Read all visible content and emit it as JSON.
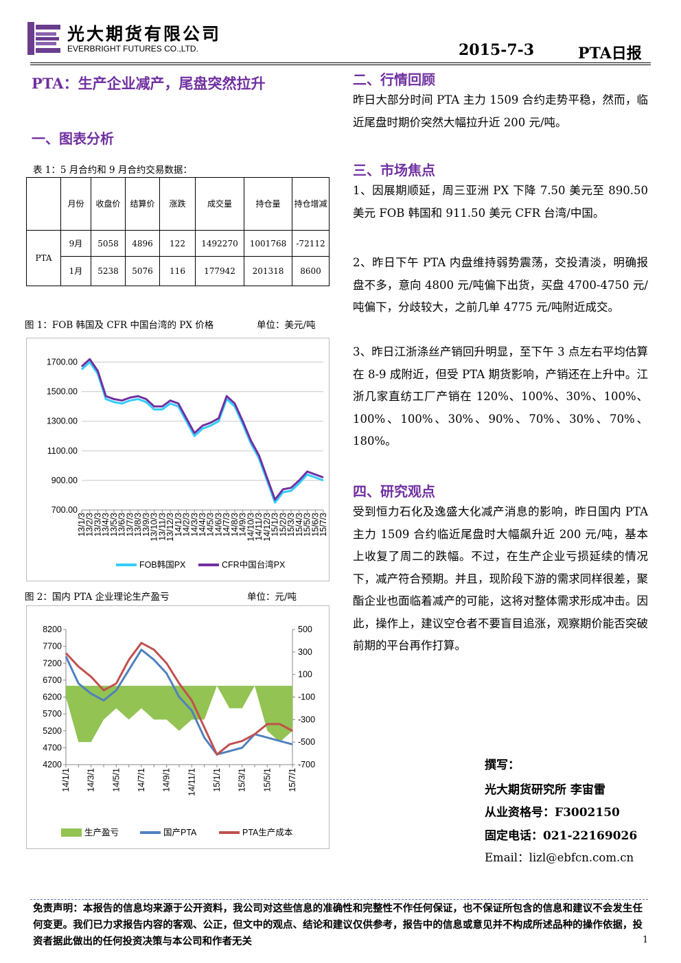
{
  "header": {
    "company": "光大期货有限公司",
    "company_en": "EVERBRIGHT FUTURES CO.,LTD.",
    "date": "2015-7-3",
    "report": "PTA日报"
  },
  "title": "PTA：生产企业减产，尾盘突然拉升",
  "section1": {
    "heading": "一、图表分析"
  },
  "table": {
    "caption": "表 1：5 月合约和 9 月合约交易数据：",
    "header": [
      "月份",
      "收盘价",
      "结算价",
      "涨跌",
      "成交量",
      "持仓量",
      "持仓增减"
    ],
    "group": "PTA",
    "rows": [
      [
        "9月",
        5058,
        4896,
        122,
        1492270,
        1001768,
        -72112
      ],
      [
        "1月",
        5238,
        5076,
        116,
        177942,
        201318,
        8600
      ]
    ]
  },
  "chart_data": [
    {
      "type": "line",
      "title": "图 1：FOB 韩国及 CFR 中国台湾的 PX 价格",
      "unit": "单位：美元/吨",
      "categories": [
        "13/1/3",
        "13/2/3",
        "13/3/3",
        "13/4/3",
        "13/5/3",
        "13/6/3",
        "13/7/3",
        "13/8/3",
        "13/9/3",
        "13/10/3",
        "13/11/3",
        "13/12/3",
        "14/1/3",
        "14/2/3",
        "14/3/3",
        "14/4/3",
        "14/5/3",
        "14/6/3",
        "14/7/3",
        "14/8/3",
        "14/9/3",
        "14/10/3",
        "14/11/3",
        "14/12/3",
        "15/1/3",
        "15/2/3",
        "15/3/3",
        "15/4/3",
        "15/5/3",
        "15/6/3",
        "15/7/3"
      ],
      "series": [
        {
          "name": "FOB韩国PX",
          "color": "#33ccff",
          "values": [
            1650,
            1700,
            1620,
            1450,
            1430,
            1420,
            1440,
            1450,
            1430,
            1380,
            1380,
            1420,
            1400,
            1300,
            1200,
            1250,
            1270,
            1300,
            1450,
            1400,
            1280,
            1150,
            1050,
            900,
            750,
            820,
            830,
            880,
            940,
            920,
            900
          ]
        },
        {
          "name": "CFR中国台湾PX",
          "color": "#7030a0",
          "values": [
            1670,
            1720,
            1640,
            1470,
            1450,
            1440,
            1460,
            1470,
            1450,
            1400,
            1400,
            1440,
            1420,
            1320,
            1220,
            1270,
            1290,
            1320,
            1470,
            1420,
            1300,
            1170,
            1070,
            920,
            770,
            840,
            850,
            900,
            960,
            940,
            920
          ]
        }
      ],
      "ylim": [
        700,
        1800
      ],
      "yticks": [
        {
          "value": 700,
          "label": "700.00"
        },
        {
          "value": 900,
          "label": "900.00"
        },
        {
          "value": 1100,
          "label": "1100.00"
        },
        {
          "value": 1300,
          "label": "1300.00"
        },
        {
          "value": 1500,
          "label": "1500.00"
        },
        {
          "value": 1700,
          "label": "1700.00"
        }
      ],
      "grid": true
    },
    {
      "type": "line",
      "title": "图 2：国内 PTA 企业理论生产盈亏",
      "unit": "单位：元/吨",
      "categories": [
        "14/1/1",
        null,
        "14/3/1",
        null,
        "14/5/1",
        null,
        "14/7/1",
        null,
        "14/9/1",
        null,
        "14/11/1",
        null,
        "15/1/1",
        null,
        "15/3/1",
        null,
        "15/5/1",
        null,
        "15/7/1"
      ],
      "series": [
        {
          "name": "生产盈亏",
          "type": "area",
          "axis": "y2",
          "color": "#92c353",
          "values": [
            -100,
            -500,
            -500,
            -300,
            -200,
            -300,
            -200,
            -300,
            -300,
            -400,
            -300,
            -300,
            0,
            -200,
            -200,
            0,
            -400,
            -500,
            -400
          ]
        },
        {
          "name": "国产PTA",
          "color": "#4f81bd",
          "values": [
            7400,
            6600,
            6300,
            6100,
            6400,
            7000,
            7600,
            7300,
            6900,
            6200,
            5800,
            5000,
            4500,
            4600,
            4700,
            5100,
            5000,
            4900,
            4800
          ]
        },
        {
          "name": "PTA生产成本",
          "color": "#c0504d",
          "values": [
            7500,
            7100,
            6800,
            6400,
            6600,
            7300,
            7800,
            7600,
            7200,
            6600,
            6100,
            5300,
            4500,
            4800,
            4900,
            5100,
            5400,
            5400,
            5200
          ]
        }
      ],
      "ylim": [
        4200,
        8200
      ],
      "yticks": [
        4200,
        4700,
        5200,
        5700,
        6200,
        6700,
        7200,
        7700,
        8200
      ],
      "y2lim": [
        -700,
        500
      ],
      "y2ticks": [
        -700,
        -500,
        -300,
        -100,
        100,
        300,
        500
      ],
      "grid": false
    }
  ],
  "section2": {
    "heading": "二、行情回顾",
    "text": "昨日大部分时间 PTA 主力 1509 合约走势平稳，然而，临近尾盘时期价突然大幅拉升近 200 元/吨。"
  },
  "section3": {
    "heading": "三、市场焦点",
    "items": [
      "1、因展期顺延，周三亚洲 PX 下降 7.50 美元至 890.50 美元 FOB 韩国和 911.50 美元 CFR 台湾/中国。",
      "2、昨日下午 PTA 内盘维持弱势震荡，交投清淡，明确报盘不多，意向 4800 元/吨偏下出货，买盘 4700-4750 元/吨偏下，分歧较大，之前几单 4775 元/吨附近成交。",
      "3、昨日江浙涤丝产销回升明显，至下午 3 点左右平均估算在 8-9 成附近，但受 PTA 期货影响，产销还在上升中。江浙几家直纺工厂产销在 120%、100%、30%、100%、100%、100%、30%、90%、70%、30%、70%、180%。"
    ]
  },
  "section4": {
    "heading": "四、研究观点",
    "text": "受到恒力石化及逸盛大化减产消息的影响，昨日国内 PTA 主力 1509 合约临近尾盘时大幅飙升近 200 元/吨，基本上收复了周二的跌幅。不过，在生产企业亏损延续的情况下，减产符合预期。并且，现阶段下游的需求同样很差，聚酯企业也面临着减产的可能，这将对整体需求形成冲击。因此，操作上，建议空仓者不要盲目追涨，观察期价能否突破前期的平台再作打算。"
  },
  "author": {
    "label": "撰写：",
    "name": "光大期货研究所 李宙雷",
    "license": "从业资格号：F3002150",
    "phone": "固定电话：021-22169026",
    "email": "Email：lizl@ebfcn.com.cn"
  },
  "footer": {
    "disclaimer": "免责声明：本报告的信息均来源于公开资料，我公司对这些信息的准确性和完整性不作任何保证，也不保证所包含的信息和建议不会发生任何变更。我们已力求报告内容的客观、公正，但文中的观点、结论和建议仅供参考，报告中的信息或意见并不构成所述品种的操作依据，投资者据此做出的任何投资决策与本公司和作者无关",
    "page": "1"
  }
}
